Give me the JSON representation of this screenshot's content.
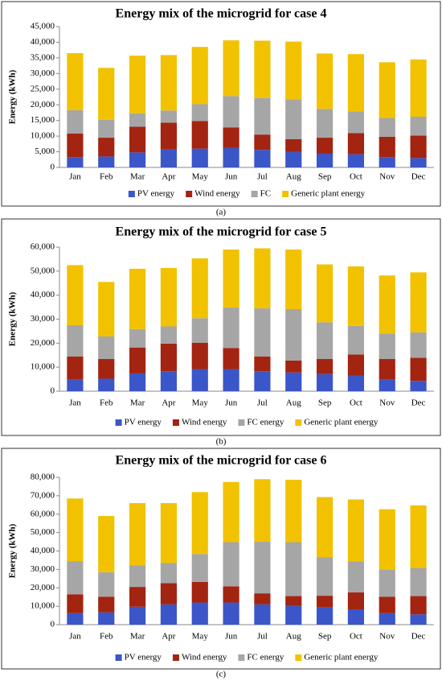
{
  "chart_data": [
    {
      "type": "stacked-bar",
      "title": "Energy mix of the microgrid for case 4",
      "y_label": "Energy (kWh)",
      "caption": "(a)",
      "categories": [
        "Jan",
        "Feb",
        "Mar",
        "Apr",
        "May",
        "Jun",
        "Jul",
        "Aug",
        "Sep",
        "Oct",
        "Nov",
        "Dec"
      ],
      "ylim": [
        0,
        45000
      ],
      "yticks": [
        0,
        {
          "value": 5000,
          "label": "5,000"
        },
        {
          "value": 10000,
          "label": "10,000"
        },
        {
          "value": 15000,
          "label": "15,000"
        },
        {
          "value": 20000,
          "label": "20,000"
        },
        {
          "value": 25000,
          "label": "25,000"
        },
        {
          "value": 30000,
          "label": "30,000"
        },
        {
          "value": 35000,
          "label": "35,000"
        },
        {
          "value": 40000,
          "label": "40,000"
        },
        {
          "value": 45000,
          "label": "45,000"
        }
      ],
      "series": [
        {
          "name": "PV energy",
          "color": "#3a56c8",
          "values": [
            3300,
            3500,
            4800,
            5700,
            6000,
            6200,
            5600,
            5000,
            4500,
            4200,
            3300,
            3000
          ]
        },
        {
          "name": "Wind energy",
          "color": "#a32410",
          "values": [
            7500,
            6000,
            8200,
            8600,
            8800,
            6600,
            4900,
            4000,
            5000,
            6800,
            6500,
            7200
          ]
        },
        {
          "name": "FC",
          "color": "#a6a6a6",
          "values": [
            7500,
            5700,
            4300,
            3900,
            5400,
            10000,
            11700,
            12800,
            9200,
            6900,
            6000,
            6000
          ]
        },
        {
          "name": "Generic plant energy",
          "color": "#f2c200",
          "values": [
            18200,
            16600,
            18400,
            17700,
            18300,
            17800,
            18300,
            18400,
            17700,
            18300,
            17800,
            18300
          ]
        }
      ]
    },
    {
      "type": "stacked-bar",
      "title": "Energy mix of the microgrid for case 5",
      "y_label": "Energy (kWh)",
      "caption": "(b)",
      "categories": [
        "Jan",
        "Feb",
        "Mar",
        "Apr",
        "May",
        "Jun",
        "Jul",
        "Aug",
        "Sep",
        "Oct",
        "Nov",
        "Dec"
      ],
      "ylim": [
        0,
        60000
      ],
      "yticks": [
        0,
        {
          "value": 10000,
          "label": "10,000"
        },
        {
          "value": 20000,
          "label": "20,000"
        },
        {
          "value": 30000,
          "label": "30,000"
        },
        {
          "value": 40000,
          "label": "40,000"
        },
        {
          "value": 50000,
          "label": "50,000"
        },
        {
          "value": 60000,
          "label": "60,000"
        }
      ],
      "series": [
        {
          "name": "PV energy",
          "color": "#3a56c8",
          "values": [
            4800,
            5200,
            7400,
            8300,
            9200,
            9200,
            8300,
            7800,
            7100,
            6400,
            4800,
            4300
          ]
        },
        {
          "name": "Wind energy",
          "color": "#a32410",
          "values": [
            9700,
            8200,
            10800,
            11500,
            11000,
            8800,
            6200,
            5000,
            6300,
            8900,
            8600,
            9600
          ]
        },
        {
          "name": "FC energy",
          "color": "#a6a6a6",
          "values": [
            13000,
            9400,
            7700,
            7200,
            10200,
            16900,
            20000,
            21400,
            15300,
            11900,
            10600,
            10600
          ]
        },
        {
          "name": "Generic plant energy",
          "color": "#f2c200",
          "values": [
            25000,
            22700,
            25100,
            24300,
            24900,
            24100,
            25000,
            24800,
            24100,
            24800,
            24200,
            25000
          ]
        }
      ]
    },
    {
      "type": "stacked-bar",
      "title": "Energy mix of the microgrid for case 6",
      "y_label": "Energy (kWh)",
      "caption": "(c)",
      "categories": [
        "Jan",
        "Feb",
        "Mar",
        "Apr",
        "May",
        "Jun",
        "Jul",
        "Aug",
        "Sep",
        "Oct",
        "Nov",
        "Dec"
      ],
      "ylim": [
        0,
        80000
      ],
      "yticks": [
        0,
        {
          "value": 10000,
          "label": "10,000"
        },
        {
          "value": 20000,
          "label": "20,000"
        },
        {
          "value": 30000,
          "label": "30,000"
        },
        {
          "value": 40000,
          "label": "40,000"
        },
        {
          "value": 50000,
          "label": "50,000"
        },
        {
          "value": 60000,
          "label": "60,000"
        },
        {
          "value": 70000,
          "label": "70,000"
        },
        {
          "value": 80000,
          "label": "80,000"
        }
      ],
      "series": [
        {
          "name": "PV energy",
          "color": "#3a56c8",
          "values": [
            6200,
            6700,
            9700,
            11000,
            12000,
            12000,
            11000,
            10300,
            9300,
            8300,
            6200,
            5600
          ]
        },
        {
          "name": "Wind energy",
          "color": "#a32410",
          "values": [
            10300,
            8500,
            10800,
            11500,
            11200,
            8800,
            6000,
            5200,
            6400,
            9200,
            9000,
            9900
          ]
        },
        {
          "name": "FC energy",
          "color": "#a6a6a6",
          "values": [
            18000,
            13300,
            11800,
            11000,
            15100,
            24000,
            28000,
            29300,
            20800,
            16800,
            14700,
            15300
          ]
        },
        {
          "name": "Generic plant energy",
          "color": "#f2c200",
          "values": [
            34000,
            30500,
            33700,
            32500,
            33700,
            32700,
            34000,
            33900,
            32800,
            33700,
            32800,
            34000
          ]
        }
      ]
    }
  ]
}
